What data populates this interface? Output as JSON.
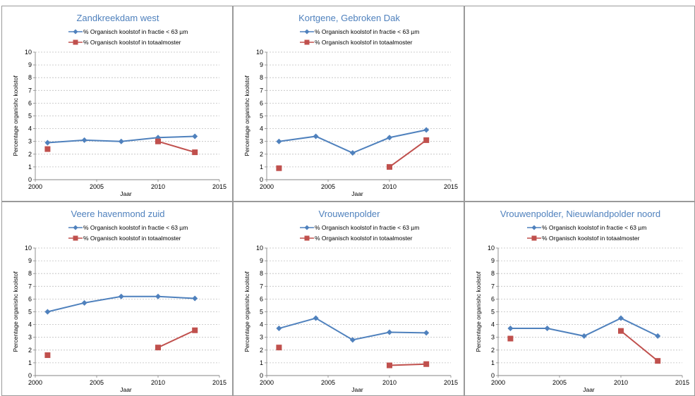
{
  "legend": {
    "fine": "% Organisch koolstof in fractie < 63 µm",
    "total": "% Organisch koolstof in totaalmoster"
  },
  "axes": {
    "xlabel": "Jaar",
    "ylabel": "Percentage organishc koolstof",
    "xlim": [
      2000,
      2015
    ],
    "ylim": [
      0,
      10
    ],
    "xticks": [
      2000,
      2005,
      2010,
      2015
    ],
    "yticks": [
      0,
      1,
      2,
      3,
      4,
      5,
      6,
      7,
      8,
      9,
      10
    ]
  },
  "colors": {
    "title": "#4f81bd",
    "fine": "#4f81bd",
    "total": "#c0504d",
    "grid": "#bfbfbf",
    "axis": "#868686"
  },
  "chart_data": [
    {
      "type": "line",
      "title": "Zandkreekdam west",
      "xlabel": "Jaar",
      "ylabel": "Percentage organishc koolstof",
      "xlim": [
        2000,
        2015
      ],
      "ylim": [
        0,
        10
      ],
      "series": [
        {
          "name": "% Organisch koolstof in fractie < 63 µm",
          "x": [
            2001,
            2004,
            2007,
            2010,
            2013
          ],
          "y": [
            2.9,
            3.1,
            3.0,
            3.3,
            3.4
          ]
        },
        {
          "name": "% Organisch koolstof in totaalmoster",
          "x": [
            2001,
            2010,
            2013
          ],
          "y": [
            2.4,
            3.0,
            2.15
          ],
          "lines": [
            false,
            true
          ]
        }
      ]
    },
    {
      "type": "line",
      "title": "Kortgene, Gebroken Dak",
      "xlabel": "Jaar",
      "ylabel": "Percentage organishc koolstof",
      "xlim": [
        2000,
        2015
      ],
      "ylim": [
        0,
        10
      ],
      "series": [
        {
          "name": "% Organisch koolstof in fractie < 63 µm",
          "x": [
            2001,
            2004,
            2007,
            2010,
            2013
          ],
          "y": [
            3.0,
            3.4,
            2.1,
            3.3,
            3.9
          ]
        },
        {
          "name": "% Organisch koolstof in totaalmoster",
          "x": [
            2001,
            2010,
            2013
          ],
          "y": [
            0.9,
            1.0,
            3.1
          ],
          "lines": [
            false,
            true
          ]
        }
      ]
    },
    {
      "type": "line",
      "title": "Veere havenmond zuid",
      "xlabel": "Jaar",
      "ylabel": "Percentage organishc koolstof",
      "xlim": [
        2000,
        2015
      ],
      "ylim": [
        0,
        10
      ],
      "series": [
        {
          "name": "% Organisch koolstof in fractie < 63 µm",
          "x": [
            2001,
            2004,
            2007,
            2010,
            2013
          ],
          "y": [
            5.0,
            5.7,
            6.2,
            6.2,
            6.05
          ]
        },
        {
          "name": "% Organisch koolstof in totaalmoster",
          "x": [
            2001,
            2010,
            2013
          ],
          "y": [
            1.6,
            2.2,
            3.55
          ],
          "lines": [
            false,
            true
          ]
        }
      ]
    },
    {
      "type": "line",
      "title": "Vrouwenpolder",
      "xlabel": "Jaar",
      "ylabel": "Percentage organishc koolstof",
      "xlim": [
        2000,
        2015
      ],
      "ylim": [
        0,
        10
      ],
      "series": [
        {
          "name": "% Organisch koolstof in fractie < 63 µm",
          "x": [
            2001,
            2004,
            2007,
            2010,
            2013
          ],
          "y": [
            3.7,
            4.5,
            2.8,
            3.4,
            3.35
          ]
        },
        {
          "name": "% Organisch koolstof in totaalmoster",
          "x": [
            2001,
            2010,
            2013
          ],
          "y": [
            2.2,
            0.8,
            0.9
          ],
          "lines": [
            false,
            true
          ]
        }
      ]
    },
    {
      "type": "line",
      "title": "Vrouwenpolder, Nieuwlandpolder noord",
      "xlabel": "Jaar",
      "ylabel": "Percentage organishc koolstof",
      "xlim": [
        2000,
        2015
      ],
      "ylim": [
        0,
        10
      ],
      "series": [
        {
          "name": "% Organisch koolstof in fractie < 63 µm",
          "x": [
            2001,
            2004,
            2007,
            2010,
            2013
          ],
          "y": [
            3.7,
            3.7,
            3.1,
            4.5,
            3.1
          ]
        },
        {
          "name": "% Organisch koolstof in totaalmoster",
          "x": [
            2001,
            2010,
            2013
          ],
          "y": [
            2.9,
            3.5,
            1.15
          ],
          "lines": [
            false,
            true
          ]
        }
      ]
    }
  ]
}
